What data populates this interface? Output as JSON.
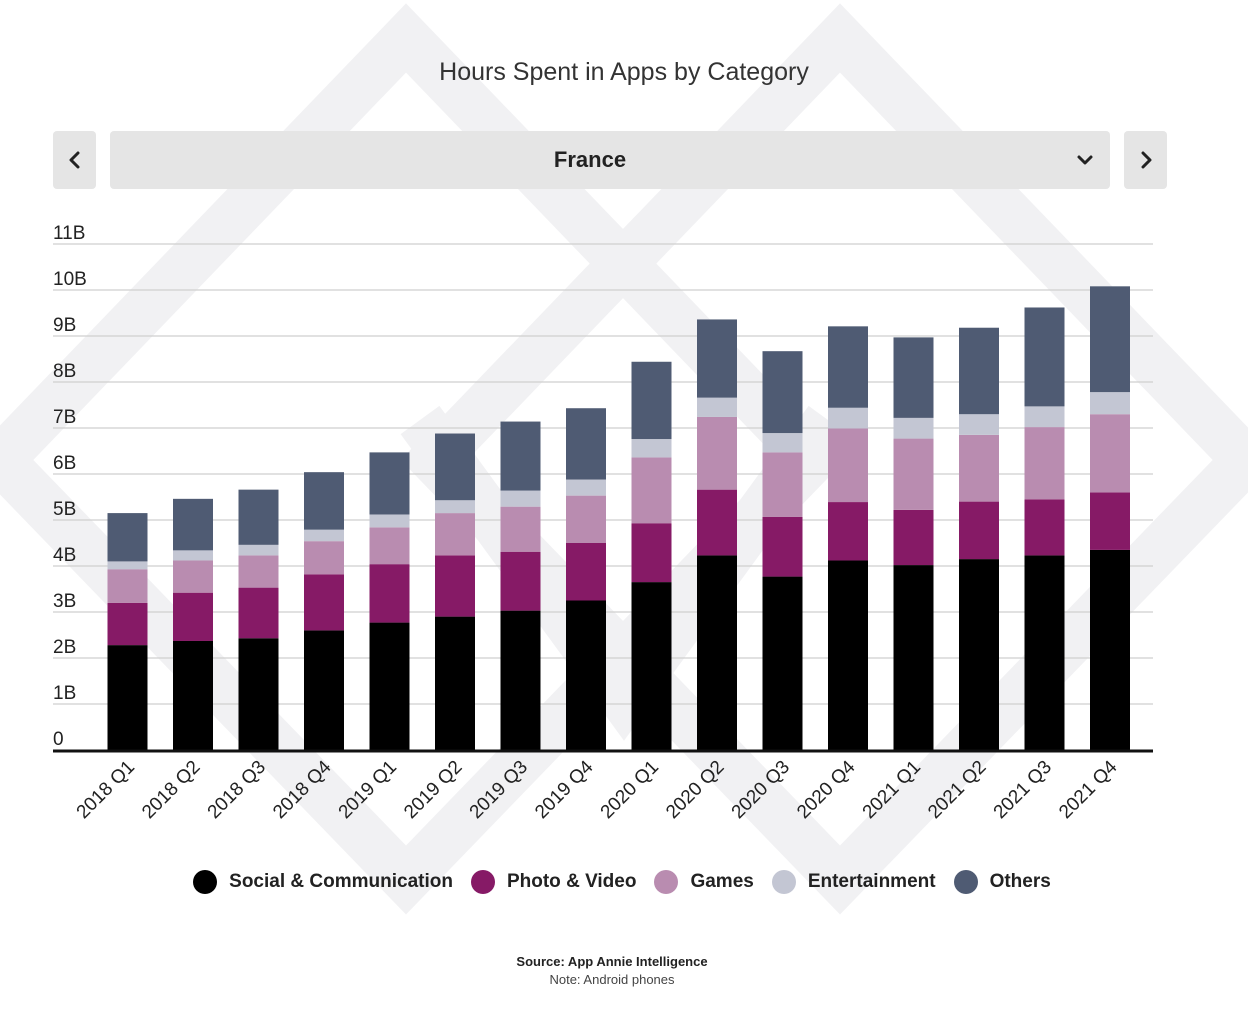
{
  "title": "Hours Spent in Apps by Category",
  "selector": {
    "value": "France"
  },
  "colors": {
    "Social & Communication": "#000000",
    "Photo & Video": "#861a66",
    "Games": "#b98cb0",
    "Entertainment": "#c3c6d3",
    "Others": "#4f5b73"
  },
  "chart_data": {
    "type": "bar",
    "stacked": true,
    "title": "Hours Spent in Apps by Category",
    "xlabel": "",
    "ylabel": "",
    "ylim": [
      0,
      11
    ],
    "y_unit": "B",
    "yticks": [
      "0",
      "1B",
      "2B",
      "3B",
      "4B",
      "5B",
      "6B",
      "7B",
      "8B",
      "9B",
      "10B",
      "11B"
    ],
    "grid": true,
    "legend_position": "bottom",
    "categories": [
      "2018 Q1",
      "2018 Q2",
      "2018 Q3",
      "2018 Q4",
      "2019 Q1",
      "2019 Q2",
      "2019 Q3",
      "2019 Q4",
      "2020 Q1",
      "2020 Q2",
      "2020 Q3",
      "2020 Q4",
      "2021 Q1",
      "2021 Q2",
      "2021 Q3",
      "2021 Q4"
    ],
    "series": [
      {
        "name": "Social & Communication",
        "values": [
          2.28,
          2.37,
          2.43,
          2.6,
          2.77,
          2.9,
          3.03,
          3.25,
          3.65,
          4.23,
          3.77,
          4.12,
          4.02,
          4.15,
          4.23,
          4.35
        ]
      },
      {
        "name": "Photo & Video",
        "values": [
          0.92,
          1.05,
          1.1,
          1.22,
          1.27,
          1.33,
          1.28,
          1.25,
          1.28,
          1.43,
          1.3,
          1.27,
          1.2,
          1.25,
          1.22,
          1.25
        ]
      },
      {
        "name": "Games",
        "values": [
          0.73,
          0.7,
          0.7,
          0.72,
          0.8,
          0.92,
          0.98,
          1.03,
          1.43,
          1.58,
          1.4,
          1.6,
          1.55,
          1.45,
          1.57,
          1.7
        ]
      },
      {
        "name": "Entertainment",
        "values": [
          0.17,
          0.22,
          0.23,
          0.25,
          0.28,
          0.28,
          0.35,
          0.35,
          0.4,
          0.42,
          0.42,
          0.45,
          0.45,
          0.45,
          0.45,
          0.48
        ]
      },
      {
        "name": "Others",
        "values": [
          1.05,
          1.12,
          1.2,
          1.25,
          1.35,
          1.45,
          1.5,
          1.55,
          1.68,
          1.7,
          1.78,
          1.77,
          1.75,
          1.88,
          2.15,
          2.3
        ]
      }
    ]
  },
  "source": "Source: App Annie Intelligence",
  "note": "Note: Android phones"
}
